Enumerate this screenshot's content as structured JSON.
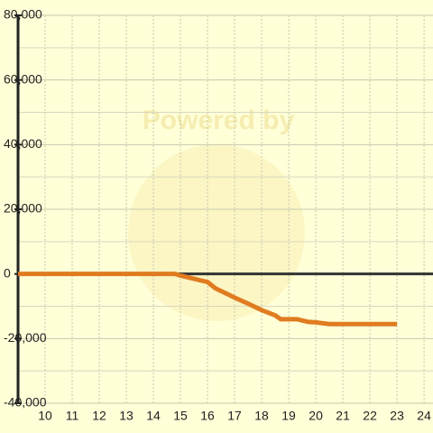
{
  "chart_data": {
    "type": "line",
    "watermark": "Powered by",
    "xlim": [
      9,
      24.33
    ],
    "ylim": [
      -40000,
      80000
    ],
    "xticks": [
      10,
      11,
      12,
      13,
      14,
      15,
      16,
      17,
      18,
      19,
      20,
      21,
      22,
      23,
      24
    ],
    "yticks": [
      {
        "value": -40000,
        "label": "-40,000"
      },
      {
        "value": -20000,
        "label": "-20,000"
      },
      0,
      {
        "value": 20000,
        "label": "20,000"
      },
      {
        "value": 40000,
        "label": "40,000"
      },
      {
        "value": 60000,
        "label": "60,000"
      },
      {
        "value": 80000,
        "label": "80,000"
      }
    ],
    "yminorticks": [
      -30000,
      -10000,
      10000,
      30000,
      50000,
      70000
    ],
    "grid": true,
    "series": [
      {
        "color": "#e07b20",
        "x": [
          9,
          14.8,
          15,
          15.5,
          16,
          16.3,
          17,
          17.5,
          18,
          18.5,
          18.7,
          19.3,
          19.7,
          20,
          20.5,
          23
        ],
        "values": [
          0,
          0,
          -500,
          -1500,
          -2500,
          -4500,
          -7300,
          -9200,
          -11200,
          -12800,
          -14000,
          -14000,
          -14800,
          -15000,
          -15500,
          -15500
        ]
      }
    ]
  }
}
